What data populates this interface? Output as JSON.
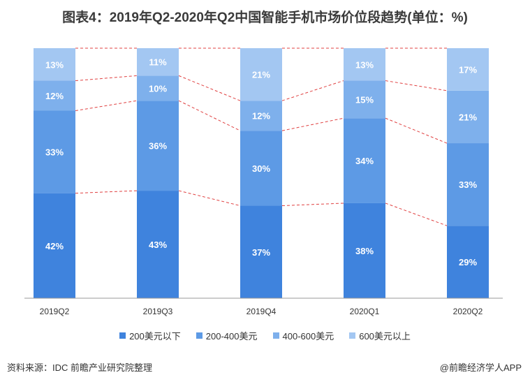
{
  "chart_data": {
    "type": "bar",
    "stacked": true,
    "title": "图表4：2019年Q2-2020年Q2中国智能手机市场价位段趋势(单位：%)",
    "categories": [
      "2019Q2",
      "2019Q3",
      "2019Q4",
      "2020Q1",
      "2020Q2"
    ],
    "series": [
      {
        "name": "200美元以下",
        "color": "#3f83dd",
        "values": [
          42,
          43,
          37,
          38,
          29
        ]
      },
      {
        "name": "200-400美元",
        "color": "#5d9ae5",
        "values": [
          33,
          36,
          30,
          34,
          33
        ]
      },
      {
        "name": "400-600美元",
        "color": "#7eb0ec",
        "values": [
          12,
          10,
          12,
          15,
          21
        ]
      },
      {
        "name": "600美元以上",
        "color": "#a3c7f2",
        "values": [
          13,
          11,
          21,
          13,
          17
        ]
      }
    ],
    "value_suffix": "%",
    "ylim": [
      0,
      100
    ],
    "legend_position": "bottom",
    "connector_color": "#e04040"
  },
  "footer": {
    "source": "资料来源：IDC 前瞻产业研究院整理",
    "brand": "@前瞻经济学人APP"
  }
}
